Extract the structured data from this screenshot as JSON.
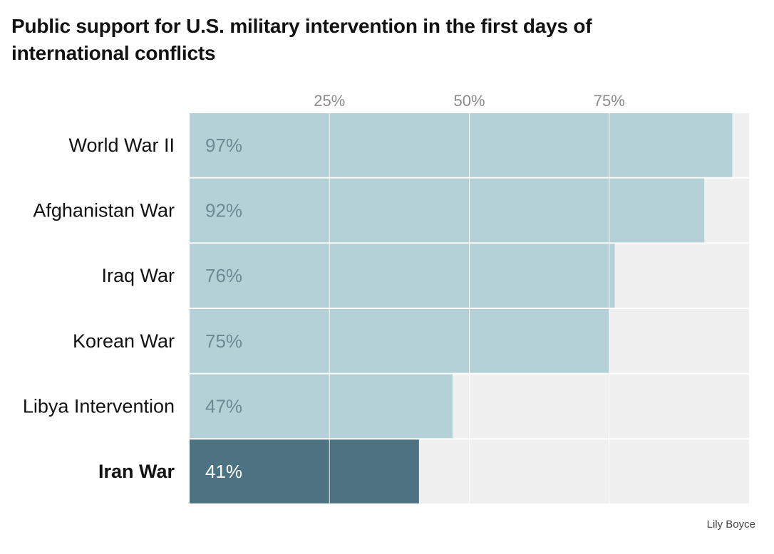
{
  "chart_data": {
    "type": "bar",
    "orientation": "horizontal",
    "title": "Public support for U.S. military intervention in the first days of international conflicts",
    "categories": [
      "World War II",
      "Afghanistan War",
      "Iraq War",
      "Korean War",
      "Libya Intervention",
      "Iran War"
    ],
    "values": [
      97,
      92,
      76,
      75,
      47,
      41
    ],
    "value_labels": [
      "97%",
      "92%",
      "76%",
      "75%",
      "47%",
      "41%"
    ],
    "highlight": "Iran War",
    "xlim": [
      0,
      100
    ],
    "xticks": [
      25,
      50,
      75
    ],
    "xtick_labels": [
      "25%",
      "50%",
      "75%"
    ],
    "xlabel": "",
    "ylabel": "",
    "colors": {
      "bar": "#b5d1d8",
      "highlight_bar": "#4d7282",
      "track": "#f0f0f0",
      "gridline": "#ffffff",
      "value_label": "#6d8a93",
      "highlight_value_label": "#ffffff",
      "tick_label": "#8a8a8a"
    }
  },
  "credit": "Lily Boyce"
}
